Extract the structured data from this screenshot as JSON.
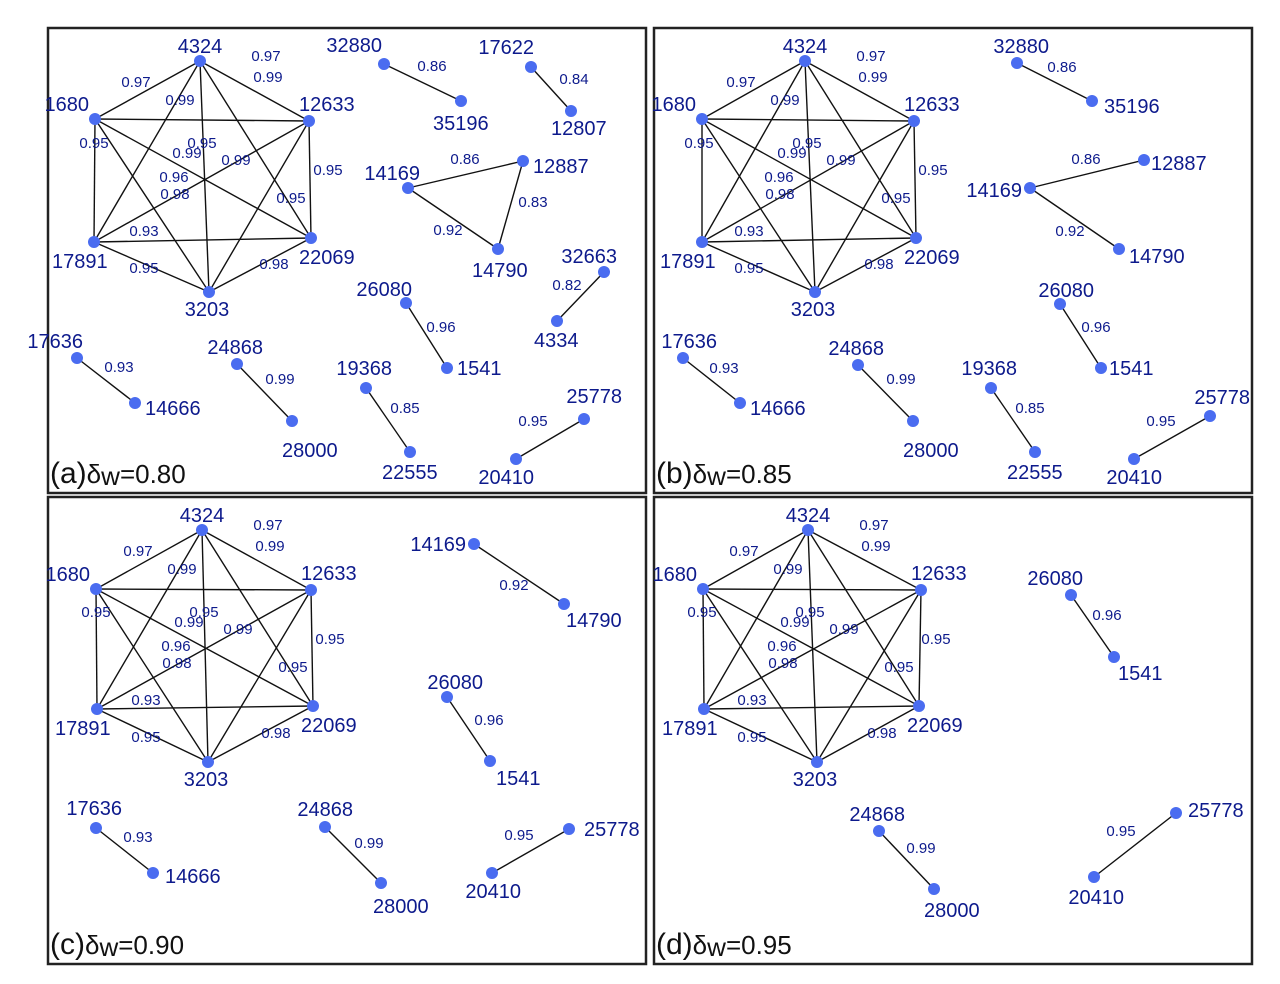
{
  "panels": [
    {
      "id": "a",
      "label": "(a)",
      "delta_symbol": "δ",
      "delta_sub": "w",
      "delta_value": "=0.80",
      "edges": [
        [
          "4324",
          "1680",
          "0.97"
        ],
        [
          "4324",
          "12633",
          "0.99"
        ],
        [
          "1680",
          "12633",
          "0.97"
        ],
        [
          "1680",
          "22069",
          "0.99"
        ],
        [
          "4324",
          "17891",
          "0.99"
        ],
        [
          "12633",
          "3203",
          "0.95"
        ],
        [
          "4324",
          "3203",
          "0.95"
        ],
        [
          "1680",
          "3203",
          "0.98"
        ],
        [
          "12633",
          "17891",
          "0.99"
        ],
        [
          "4324",
          "22069",
          "0.95"
        ],
        [
          "1680",
          "17891",
          "0.96"
        ],
        [
          "12633",
          "22069",
          "0.95"
        ],
        [
          "17891",
          "22069",
          "0.93"
        ],
        [
          "17891",
          "3203",
          "0.95"
        ],
        [
          "22069",
          "3203",
          "0.98"
        ],
        [
          "32880",
          "35196",
          "0.86"
        ],
        [
          "17622",
          "12807",
          "0.84"
        ],
        [
          "14169",
          "12887",
          "0.86"
        ],
        [
          "12887",
          "14790",
          "0.83"
        ],
        [
          "14169",
          "14790",
          "0.92"
        ],
        [
          "32663",
          "4334",
          "0.82"
        ],
        [
          "26080",
          "1541",
          "0.96"
        ],
        [
          "17636",
          "14666",
          "0.93"
        ],
        [
          "24868",
          "28000",
          "0.99"
        ],
        [
          "19368",
          "22555",
          "0.85"
        ],
        [
          "25778",
          "20410",
          "0.95"
        ]
      ]
    },
    {
      "id": "b",
      "label": "(b)",
      "delta_symbol": "δ",
      "delta_sub": "w",
      "delta_value": "=0.85",
      "edges": [
        [
          "4324",
          "1680",
          "0.97"
        ],
        [
          "4324",
          "12633",
          "0.99"
        ],
        [
          "1680",
          "12633",
          "0.97"
        ],
        [
          "1680",
          "22069",
          "0.99"
        ],
        [
          "4324",
          "17891",
          "0.99"
        ],
        [
          "12633",
          "3203",
          "0.95"
        ],
        [
          "4324",
          "3203",
          "0.95"
        ],
        [
          "1680",
          "3203",
          "0.98"
        ],
        [
          "12633",
          "17891",
          "0.99"
        ],
        [
          "4324",
          "22069",
          "0.95"
        ],
        [
          "1680",
          "17891",
          "0.96"
        ],
        [
          "12633",
          "22069",
          "0.95"
        ],
        [
          "17891",
          "22069",
          "0.93"
        ],
        [
          "17891",
          "3203",
          "0.95"
        ],
        [
          "22069",
          "3203",
          "0.98"
        ],
        [
          "32880",
          "35196",
          "0.86"
        ],
        [
          "14169",
          "12887",
          "0.86"
        ],
        [
          "14169",
          "14790",
          "0.92"
        ],
        [
          "26080",
          "1541",
          "0.96"
        ],
        [
          "17636",
          "14666",
          "0.93"
        ],
        [
          "24868",
          "28000",
          "0.99"
        ],
        [
          "19368",
          "22555",
          "0.85"
        ],
        [
          "25778",
          "20410",
          "0.95"
        ]
      ]
    },
    {
      "id": "c",
      "label": "(c)",
      "delta_symbol": "δ",
      "delta_sub": "w",
      "delta_value": "=0.90",
      "edges": [
        [
          "4324",
          "1680",
          "0.97"
        ],
        [
          "4324",
          "12633",
          "0.99"
        ],
        [
          "1680",
          "12633",
          "0.97"
        ],
        [
          "1680",
          "22069",
          "0.99"
        ],
        [
          "4324",
          "17891",
          "0.99"
        ],
        [
          "12633",
          "3203",
          "0.95"
        ],
        [
          "4324",
          "3203",
          "0.95"
        ],
        [
          "1680",
          "3203",
          "0.98"
        ],
        [
          "12633",
          "17891",
          "0.99"
        ],
        [
          "4324",
          "22069",
          "0.95"
        ],
        [
          "1680",
          "17891",
          "0.96"
        ],
        [
          "12633",
          "22069",
          "0.95"
        ],
        [
          "17891",
          "22069",
          "0.93"
        ],
        [
          "17891",
          "3203",
          "0.95"
        ],
        [
          "22069",
          "3203",
          "0.98"
        ],
        [
          "14169",
          "14790",
          "0.92"
        ],
        [
          "26080",
          "1541",
          "0.96"
        ],
        [
          "17636",
          "14666",
          "0.93"
        ],
        [
          "24868",
          "28000",
          "0.99"
        ],
        [
          "25778",
          "20410",
          "0.95"
        ]
      ]
    },
    {
      "id": "d",
      "label": "(d)",
      "delta_symbol": "δ",
      "delta_sub": "w",
      "delta_value": "=0.95",
      "edges": [
        [
          "4324",
          "1680",
          "0.97"
        ],
        [
          "4324",
          "12633",
          "0.99"
        ],
        [
          "1680",
          "12633",
          "0.97"
        ],
        [
          "1680",
          "22069",
          "0.99"
        ],
        [
          "4324",
          "17891",
          "0.99"
        ],
        [
          "12633",
          "3203",
          "0.95"
        ],
        [
          "4324",
          "3203",
          "0.95"
        ],
        [
          "1680",
          "3203",
          "0.98"
        ],
        [
          "12633",
          "17891",
          "0.99"
        ],
        [
          "4324",
          "22069",
          "0.95"
        ],
        [
          "1680",
          "17891",
          "0.96"
        ],
        [
          "12633",
          "22069",
          "0.95"
        ],
        [
          "17891",
          "22069",
          "0.93"
        ],
        [
          "17891",
          "3203",
          "0.95"
        ],
        [
          "22069",
          "3203",
          "0.98"
        ],
        [
          "26080",
          "1541",
          "0.96"
        ],
        [
          "24868",
          "28000",
          "0.99"
        ],
        [
          "25778",
          "20410",
          "0.95"
        ]
      ]
    }
  ]
}
